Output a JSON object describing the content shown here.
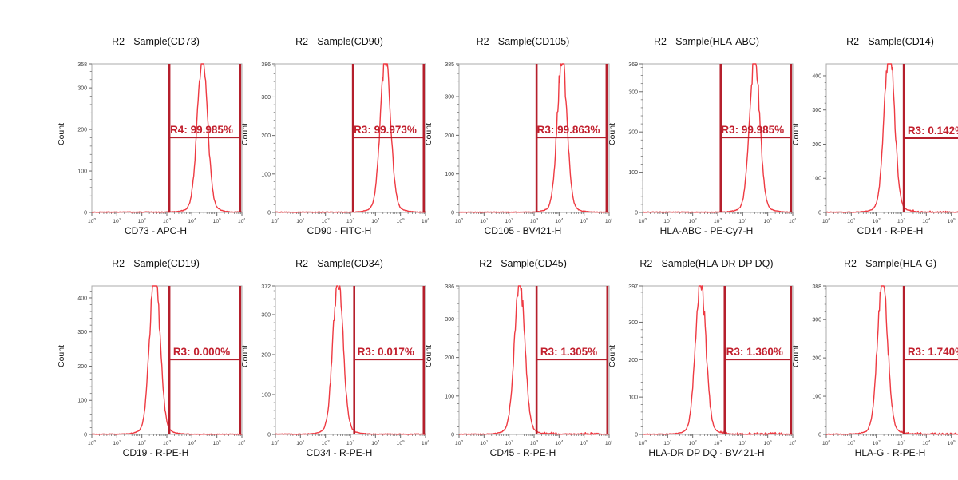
{
  "common": {
    "x_scale": "log10",
    "x_tick_exponents": [
      0,
      1,
      2,
      3,
      4,
      5,
      6
    ],
    "colors": {
      "curve": "#ee3a42",
      "gate": "#b51f2c",
      "gate_label": "#c2202e",
      "frame": "#ababab",
      "tick": "#6a6a6a",
      "tick_text": "#3a3a3a"
    }
  },
  "chart_data": [
    {
      "type": "histogram",
      "title": "R2 - Sample(CD73)",
      "xlabel": "CD73 - APC-H",
      "ylabel": "Count",
      "x_range": [
        1,
        1000000
      ],
      "y_max": 358,
      "y_max_label": "358",
      "y_tick_values": [
        300,
        200,
        100,
        0
      ],
      "peak": {
        "center_log": 4.42,
        "sigma": 0.2,
        "height_frac": 1.0,
        "clipped": false,
        "tail_noise": false
      },
      "gate": {
        "label": "R4: 99.985%",
        "percent": 99.985,
        "from_log": 3.1,
        "to_log": 5.93,
        "level_frac": 0.505
      }
    },
    {
      "type": "histogram",
      "title": "R2 - Sample(CD90)",
      "xlabel": "CD90 - FITC-H",
      "ylabel": "Count",
      "x_range": [
        1,
        1000000
      ],
      "y_max": 386,
      "y_max_label": "386",
      "y_tick_values": [
        300,
        200,
        100,
        0
      ],
      "peak": {
        "center_log": 4.4,
        "sigma": 0.2,
        "height_frac": 1.0,
        "clipped": false,
        "tail_noise": false
      },
      "gate": {
        "label": "R3: 99.973%",
        "percent": 99.973,
        "from_log": 3.1,
        "to_log": 5.93,
        "level_frac": 0.505
      }
    },
    {
      "type": "histogram",
      "title": "R2 - Sample(CD105)",
      "xlabel": "CD105 - BV421-H",
      "ylabel": "Count",
      "x_range": [
        1,
        1000000
      ],
      "y_max": 385,
      "y_max_label": "385",
      "y_tick_values": [
        300,
        200,
        100,
        0
      ],
      "peak": {
        "center_log": 4.12,
        "sigma": 0.19,
        "height_frac": 1.0,
        "clipped": false,
        "tail_noise": false
      },
      "gate": {
        "label": "R3: 99.863%",
        "percent": 99.863,
        "from_log": 3.1,
        "to_log": 5.9,
        "level_frac": 0.505
      }
    },
    {
      "type": "histogram",
      "title": "R2 - Sample(HLA-ABC)",
      "xlabel": "HLA-ABC - PE-Cy7-H",
      "ylabel": "Count",
      "x_range": [
        1,
        1000000
      ],
      "y_max": 369,
      "y_max_label": "369",
      "y_tick_values": [
        300,
        200,
        100,
        0
      ],
      "peak": {
        "center_log": 4.48,
        "sigma": 0.2,
        "height_frac": 1.0,
        "clipped": false,
        "tail_noise": false
      },
      "gate": {
        "label": "R3: 99.985%",
        "percent": 99.985,
        "from_log": 3.12,
        "to_log": 5.93,
        "level_frac": 0.505
      }
    },
    {
      "type": "histogram",
      "title": "R2 - Sample(CD14)",
      "xlabel": "CD14 - R-PE-H",
      "ylabel": "Count",
      "x_range": [
        1,
        1000000
      ],
      "y_max": 435,
      "y_max_label": null,
      "y_tick_values": [
        400,
        300,
        200,
        100,
        0
      ],
      "peak": {
        "center_log": 2.52,
        "sigma": 0.2,
        "height_frac": 1.07,
        "clipped": true,
        "tail_noise": true
      },
      "gate": {
        "label": "R3: 0.142%",
        "percent": 0.142,
        "from_log": 3.1,
        "to_log": 5.93,
        "level_frac": 0.5
      }
    },
    {
      "type": "histogram",
      "title": "R2 - Sample(CD19)",
      "xlabel": "CD19 - R-PE-H",
      "ylabel": "Count",
      "x_range": [
        1,
        1000000
      ],
      "y_max": 435,
      "y_max_label": null,
      "y_tick_values": [
        400,
        300,
        200,
        100,
        0
      ],
      "peak": {
        "center_log": 2.52,
        "sigma": 0.2,
        "height_frac": 1.07,
        "clipped": true,
        "tail_noise": false
      },
      "gate": {
        "label": "R3: 0.000%",
        "percent": 0.0,
        "from_log": 3.1,
        "to_log": 5.93,
        "level_frac": 0.505
      }
    },
    {
      "type": "histogram",
      "title": "R2 - Sample(CD34)",
      "xlabel": "CD34 - R-PE-H",
      "ylabel": "Count",
      "x_range": [
        1,
        1000000
      ],
      "y_max": 372,
      "y_max_label": "372",
      "y_tick_values": [
        300,
        200,
        100,
        0
      ],
      "peak": {
        "center_log": 2.5,
        "sigma": 0.2,
        "height_frac": 1.0,
        "clipped": false,
        "tail_noise": false
      },
      "gate": {
        "label": "R3: 0.017%",
        "percent": 0.017,
        "from_log": 3.15,
        "to_log": 5.93,
        "level_frac": 0.505
      }
    },
    {
      "type": "histogram",
      "title": "R2 - Sample(CD45)",
      "xlabel": "CD45 - R-PE-H",
      "ylabel": "Count",
      "x_range": [
        1,
        1000000
      ],
      "y_max": 386,
      "y_max_label": "386",
      "y_tick_values": [
        300,
        200,
        100,
        0
      ],
      "peak": {
        "center_log": 2.42,
        "sigma": 0.2,
        "height_frac": 1.0,
        "clipped": false,
        "tail_noise": true
      },
      "gate": {
        "label": "R3: 1.305%",
        "percent": 1.305,
        "from_log": 3.1,
        "to_log": 5.93,
        "level_frac": 0.505
      }
    },
    {
      "type": "histogram",
      "title": "R2 - Sample(HLA-DR DP DQ)",
      "xlabel": "HLA-DR DP DQ - BV421-H",
      "ylabel": "Count",
      "x_range": [
        1,
        1000000
      ],
      "y_max": 397,
      "y_max_label": "397",
      "y_tick_values": [
        300,
        200,
        100,
        0
      ],
      "peak": {
        "center_log": 2.32,
        "sigma": 0.2,
        "height_frac": 1.0,
        "clipped": false,
        "tail_noise": true
      },
      "gate": {
        "label": "R3: 1.360%",
        "percent": 1.36,
        "from_log": 3.28,
        "to_log": 5.93,
        "level_frac": 0.505
      }
    },
    {
      "type": "histogram",
      "title": "R2 - Sample(HLA-G)",
      "xlabel": "HLA-G - R-PE-H",
      "ylabel": "Count",
      "x_range": [
        1,
        1000000
      ],
      "y_max": 388,
      "y_max_label": "388",
      "y_tick_values": [
        300,
        200,
        100,
        0
      ],
      "peak": {
        "center_log": 2.25,
        "sigma": 0.2,
        "height_frac": 1.0,
        "clipped": false,
        "tail_noise": true
      },
      "gate": {
        "label": "R3: 1.740%",
        "percent": 1.74,
        "from_log": 3.1,
        "to_log": 5.93,
        "level_frac": 0.505
      }
    }
  ]
}
